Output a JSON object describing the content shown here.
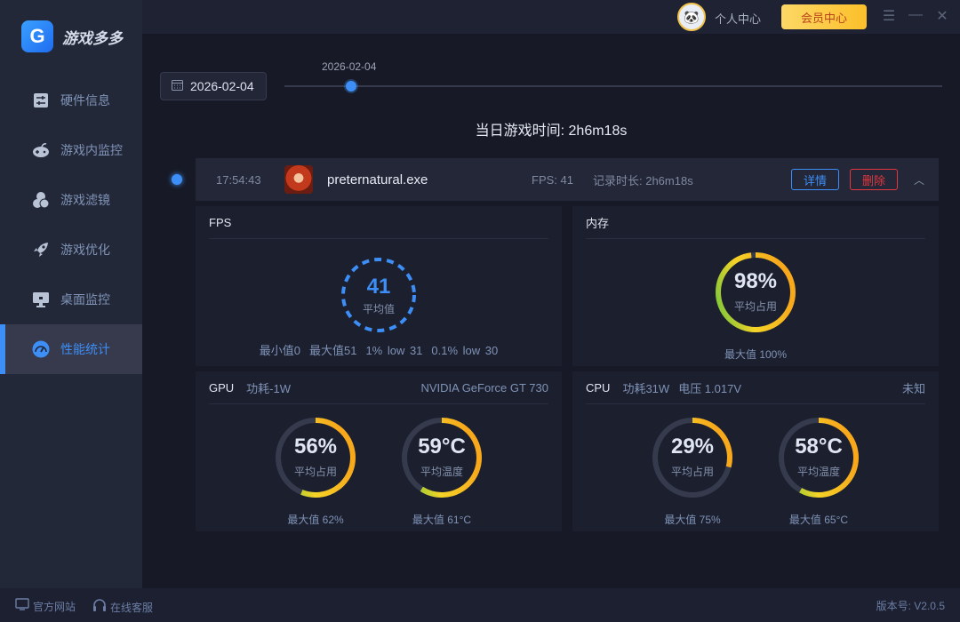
{
  "app": {
    "name": "游戏多多",
    "logo_letter": "G"
  },
  "sidebar": {
    "items": [
      {
        "label": "硬件信息",
        "icon": "sliders-icon"
      },
      {
        "label": "游戏内监控",
        "icon": "gamepad-icon"
      },
      {
        "label": "游戏滤镜",
        "icon": "filter-circles-icon"
      },
      {
        "label": "游戏优化",
        "icon": "rocket-icon"
      },
      {
        "label": "桌面监控",
        "icon": "monitor-icon"
      },
      {
        "label": "性能统计",
        "icon": "speedometer-icon",
        "active": true
      }
    ]
  },
  "topbar": {
    "user_center": "个人中心",
    "vip_center": "会员中心"
  },
  "date_picker": {
    "value": "2026-02-04"
  },
  "timeline": {
    "marker_label": "2026-02-04",
    "position": 0.1
  },
  "day_summary": {
    "label": "当日游戏时间:",
    "value": "2h6m18s"
  },
  "session": {
    "time": "17:54:43",
    "exe": "preternatural.exe",
    "fps": "FPS: 41",
    "duration": "记录时长: 2h6m18s",
    "detail": "详情",
    "delete": "删除"
  },
  "fps": {
    "title": "FPS",
    "avg": "41",
    "avg_label": "平均值",
    "stats": [
      "最小值0",
      "最大值51",
      "1% low 31",
      "0.1% low 30"
    ]
  },
  "memory": {
    "title": "内存",
    "value": "98%",
    "percent": 98,
    "label": "平均占用",
    "max": "最大值 100%"
  },
  "gpu": {
    "title": "GPU",
    "power": "功耗-1W",
    "model": "NVIDIA GeForce GT 730",
    "usage": {
      "value": "56%",
      "percent": 56,
      "label": "平均占用",
      "max": "最大值 62%"
    },
    "temp": {
      "value": "59°C",
      "percent": 59,
      "label": "平均温度",
      "max": "最大值 61°C"
    }
  },
  "cpu": {
    "title": "CPU",
    "power": "功耗31W",
    "voltage": "电压 1.017V",
    "model": "未知",
    "usage": {
      "value": "29%",
      "percent": 29,
      "label": "平均占用",
      "max": "最大值 75%"
    },
    "temp": {
      "value": "58°C",
      "percent": 58,
      "label": "平均温度",
      "max": "最大值 65°C"
    }
  },
  "footer": {
    "website": "官方网站",
    "support": "在线客服",
    "version": "版本号: V2.0.5"
  },
  "colors": {
    "accent": "#3d8ef6",
    "danger": "#e0383e",
    "gauge_start": "#6cc63c",
    "gauge_mid": "#f5d327",
    "gauge_end": "#f7a81b",
    "track": "#363a4d"
  }
}
